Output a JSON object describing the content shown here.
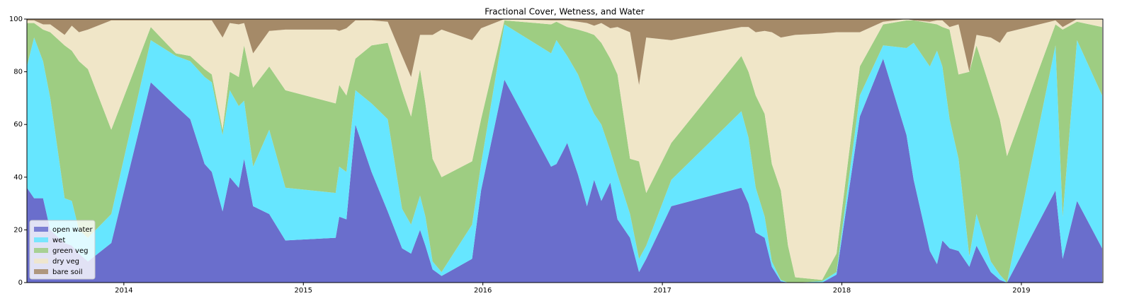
{
  "chart_data": {
    "type": "stacked_area",
    "title": "Fractional Cover, Wetness, and Water",
    "x": [
      2013.46,
      2013.5,
      2013.55,
      2013.59,
      2013.67,
      2013.71,
      2013.75,
      2013.8,
      2013.93,
      2014.15,
      2014.29,
      2014.37,
      2014.45,
      2014.49,
      2014.55,
      2014.59,
      2014.64,
      2014.67,
      2014.72,
      2014.81,
      2014.9,
      2015.18,
      2015.2,
      2015.24,
      2015.29,
      2015.38,
      2015.47,
      2015.55,
      2015.6,
      2015.65,
      2015.68,
      2015.72,
      2015.77,
      2015.94,
      2015.99,
      2016.12,
      2016.38,
      2016.41,
      2016.47,
      2016.53,
      2016.58,
      2016.62,
      2016.66,
      2016.71,
      2016.75,
      2016.82,
      2016.87,
      2016.91,
      2017.05,
      2017.44,
      2017.48,
      2017.52,
      2017.57,
      2017.61,
      2017.66,
      2017.7,
      2017.74,
      2017.89,
      2017.97,
      2018.1,
      2018.23,
      2018.36,
      2018.4,
      2018.49,
      2018.53,
      2018.56,
      2018.6,
      2018.65,
      2018.71,
      2018.75,
      2018.83,
      2018.88,
      2018.92,
      2019.19,
      2019.23,
      2019.31,
      2019.45
    ],
    "series": [
      {
        "name": "open water",
        "color": "#6a6ecc",
        "values": [
          36,
          32,
          32,
          20,
          15,
          14,
          11,
          8,
          15,
          76,
          67,
          62,
          45,
          42,
          27,
          40,
          36,
          47,
          29,
          26,
          16,
          17,
          25,
          24,
          60,
          42,
          27,
          13,
          11,
          20,
          14,
          5,
          2.5,
          9,
          35,
          77,
          44,
          45,
          53,
          41,
          29,
          39,
          31,
          38,
          24,
          17,
          4,
          9,
          29,
          36,
          30,
          19,
          17,
          6,
          0.5,
          0,
          0,
          0,
          3,
          63,
          85,
          56,
          39,
          12,
          7,
          16,
          13,
          12,
          6,
          14,
          4,
          1,
          0,
          35,
          9,
          31,
          13
        ]
      },
      {
        "name": "wet",
        "color": "#66e6ff",
        "values": [
          46,
          61,
          52,
          50,
          17,
          17,
          9,
          9,
          11,
          16,
          19,
          22,
          33,
          34,
          29,
          33,
          31,
          22,
          15,
          32,
          20,
          17,
          19,
          18,
          13,
          26,
          35,
          15,
          11,
          13,
          11,
          3,
          1.5,
          13,
          10,
          21,
          43,
          47,
          33,
          38,
          41,
          25,
          29,
          12,
          17,
          9,
          5,
          5,
          10,
          29,
          25,
          17,
          8,
          2,
          0.5,
          0,
          0,
          0.5,
          1,
          8,
          5,
          33,
          52,
          70,
          81,
          66,
          49,
          35,
          4,
          12,
          4,
          2,
          0,
          55,
          16,
          61,
          58
        ]
      },
      {
        "name": "green veg",
        "color": "#9ecd82",
        "values": [
          16.5,
          5.5,
          12,
          25,
          58,
          57,
          64,
          64,
          32,
          5,
          1,
          2,
          3,
          3,
          2,
          7,
          11,
          21,
          30,
          24,
          37,
          34,
          31,
          29,
          12,
          22,
          29,
          45,
          41,
          48,
          43,
          39,
          36,
          24,
          17,
          1.5,
          11,
          7,
          11,
          17,
          25,
          30,
          31,
          35,
          38,
          21,
          37,
          20,
          14,
          21,
          25,
          35,
          39,
          37,
          34,
          14,
          2,
          0.5,
          7,
          11,
          8,
          10.5,
          8.5,
          16.5,
          10,
          15,
          34,
          32,
          70,
          64,
          65,
          59,
          48,
          8,
          71,
          7,
          26
        ]
      },
      {
        "name": "dry veg",
        "color": "#f0e6c8",
        "values": [
          1,
          1,
          2,
          3,
          4,
          9.5,
          11,
          15,
          41.5,
          2.5,
          12.5,
          13.5,
          18.5,
          20.5,
          35,
          18.5,
          20,
          8.5,
          13,
          13.5,
          23,
          28,
          20.5,
          25.5,
          14.5,
          9.5,
          8,
          13,
          15,
          13,
          26,
          47,
          56,
          46,
          34.5,
          0.5,
          1.5,
          0.5,
          2.5,
          3,
          3.5,
          3.5,
          7.5,
          11.5,
          18,
          48,
          29,
          59,
          39,
          11,
          17,
          24,
          31.5,
          50,
          58,
          79.5,
          92,
          93.5,
          84,
          13,
          1,
          0.5,
          0,
          0.5,
          1.5,
          2.5,
          1,
          19,
          0,
          4,
          20,
          29,
          47,
          1.5,
          1,
          1,
          3
        ]
      },
      {
        "name": "bare soil",
        "color": "#a58a68",
        "values": [
          0.5,
          0.5,
          2,
          2,
          6,
          2.5,
          5,
          4,
          0.5,
          0.5,
          0.5,
          0.5,
          0.5,
          0.5,
          7,
          1.5,
          2,
          1.5,
          13,
          4.5,
          4,
          4,
          4.5,
          3.5,
          0.5,
          0.5,
          1,
          14,
          22,
          6,
          6,
          6,
          4,
          8,
          3.5,
          0,
          0.5,
          0.5,
          0.5,
          1,
          1.5,
          2.5,
          1.5,
          3.5,
          3,
          5,
          25,
          7,
          8,
          3,
          3,
          5,
          4.5,
          5,
          7,
          6.5,
          6,
          5.5,
          5,
          5,
          1,
          0,
          0.5,
          1,
          0.5,
          0.5,
          3,
          2,
          20,
          6,
          7,
          9,
          5,
          0.5,
          3,
          0,
          0
        ]
      }
    ],
    "xlim": [
      2013.46,
      2019.454
    ],
    "xticks": [
      2014,
      2015,
      2016,
      2017,
      2018,
      2019
    ],
    "ylim": [
      0,
      100
    ],
    "yticks": [
      0,
      20,
      40,
      60,
      80,
      100
    ],
    "legend": "lower left"
  }
}
